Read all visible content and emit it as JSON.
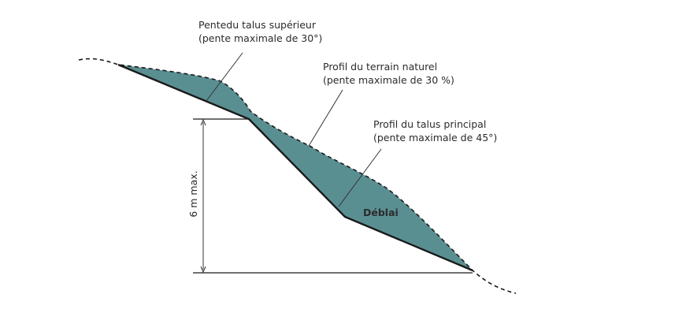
{
  "diagram": {
    "labels": {
      "upper_slope": {
        "line1": "Pentedu talus supérieur",
        "line2": "(pente maximale de 30°)"
      },
      "natural_terrain": {
        "line1": "Profil du terrain naturel",
        "line2": "(pente maximale de 30 %)"
      },
      "main_slope": {
        "line1": "Profil du talus principal",
        "line2": "(pente maximale de 45°)"
      },
      "cut_area": "Déblai",
      "height_dimension": "6 m max."
    },
    "colors": {
      "fill": "#5a8f92",
      "outline": "#1a1a1a",
      "leader": "#333333",
      "text": "#2b2b2b"
    }
  }
}
